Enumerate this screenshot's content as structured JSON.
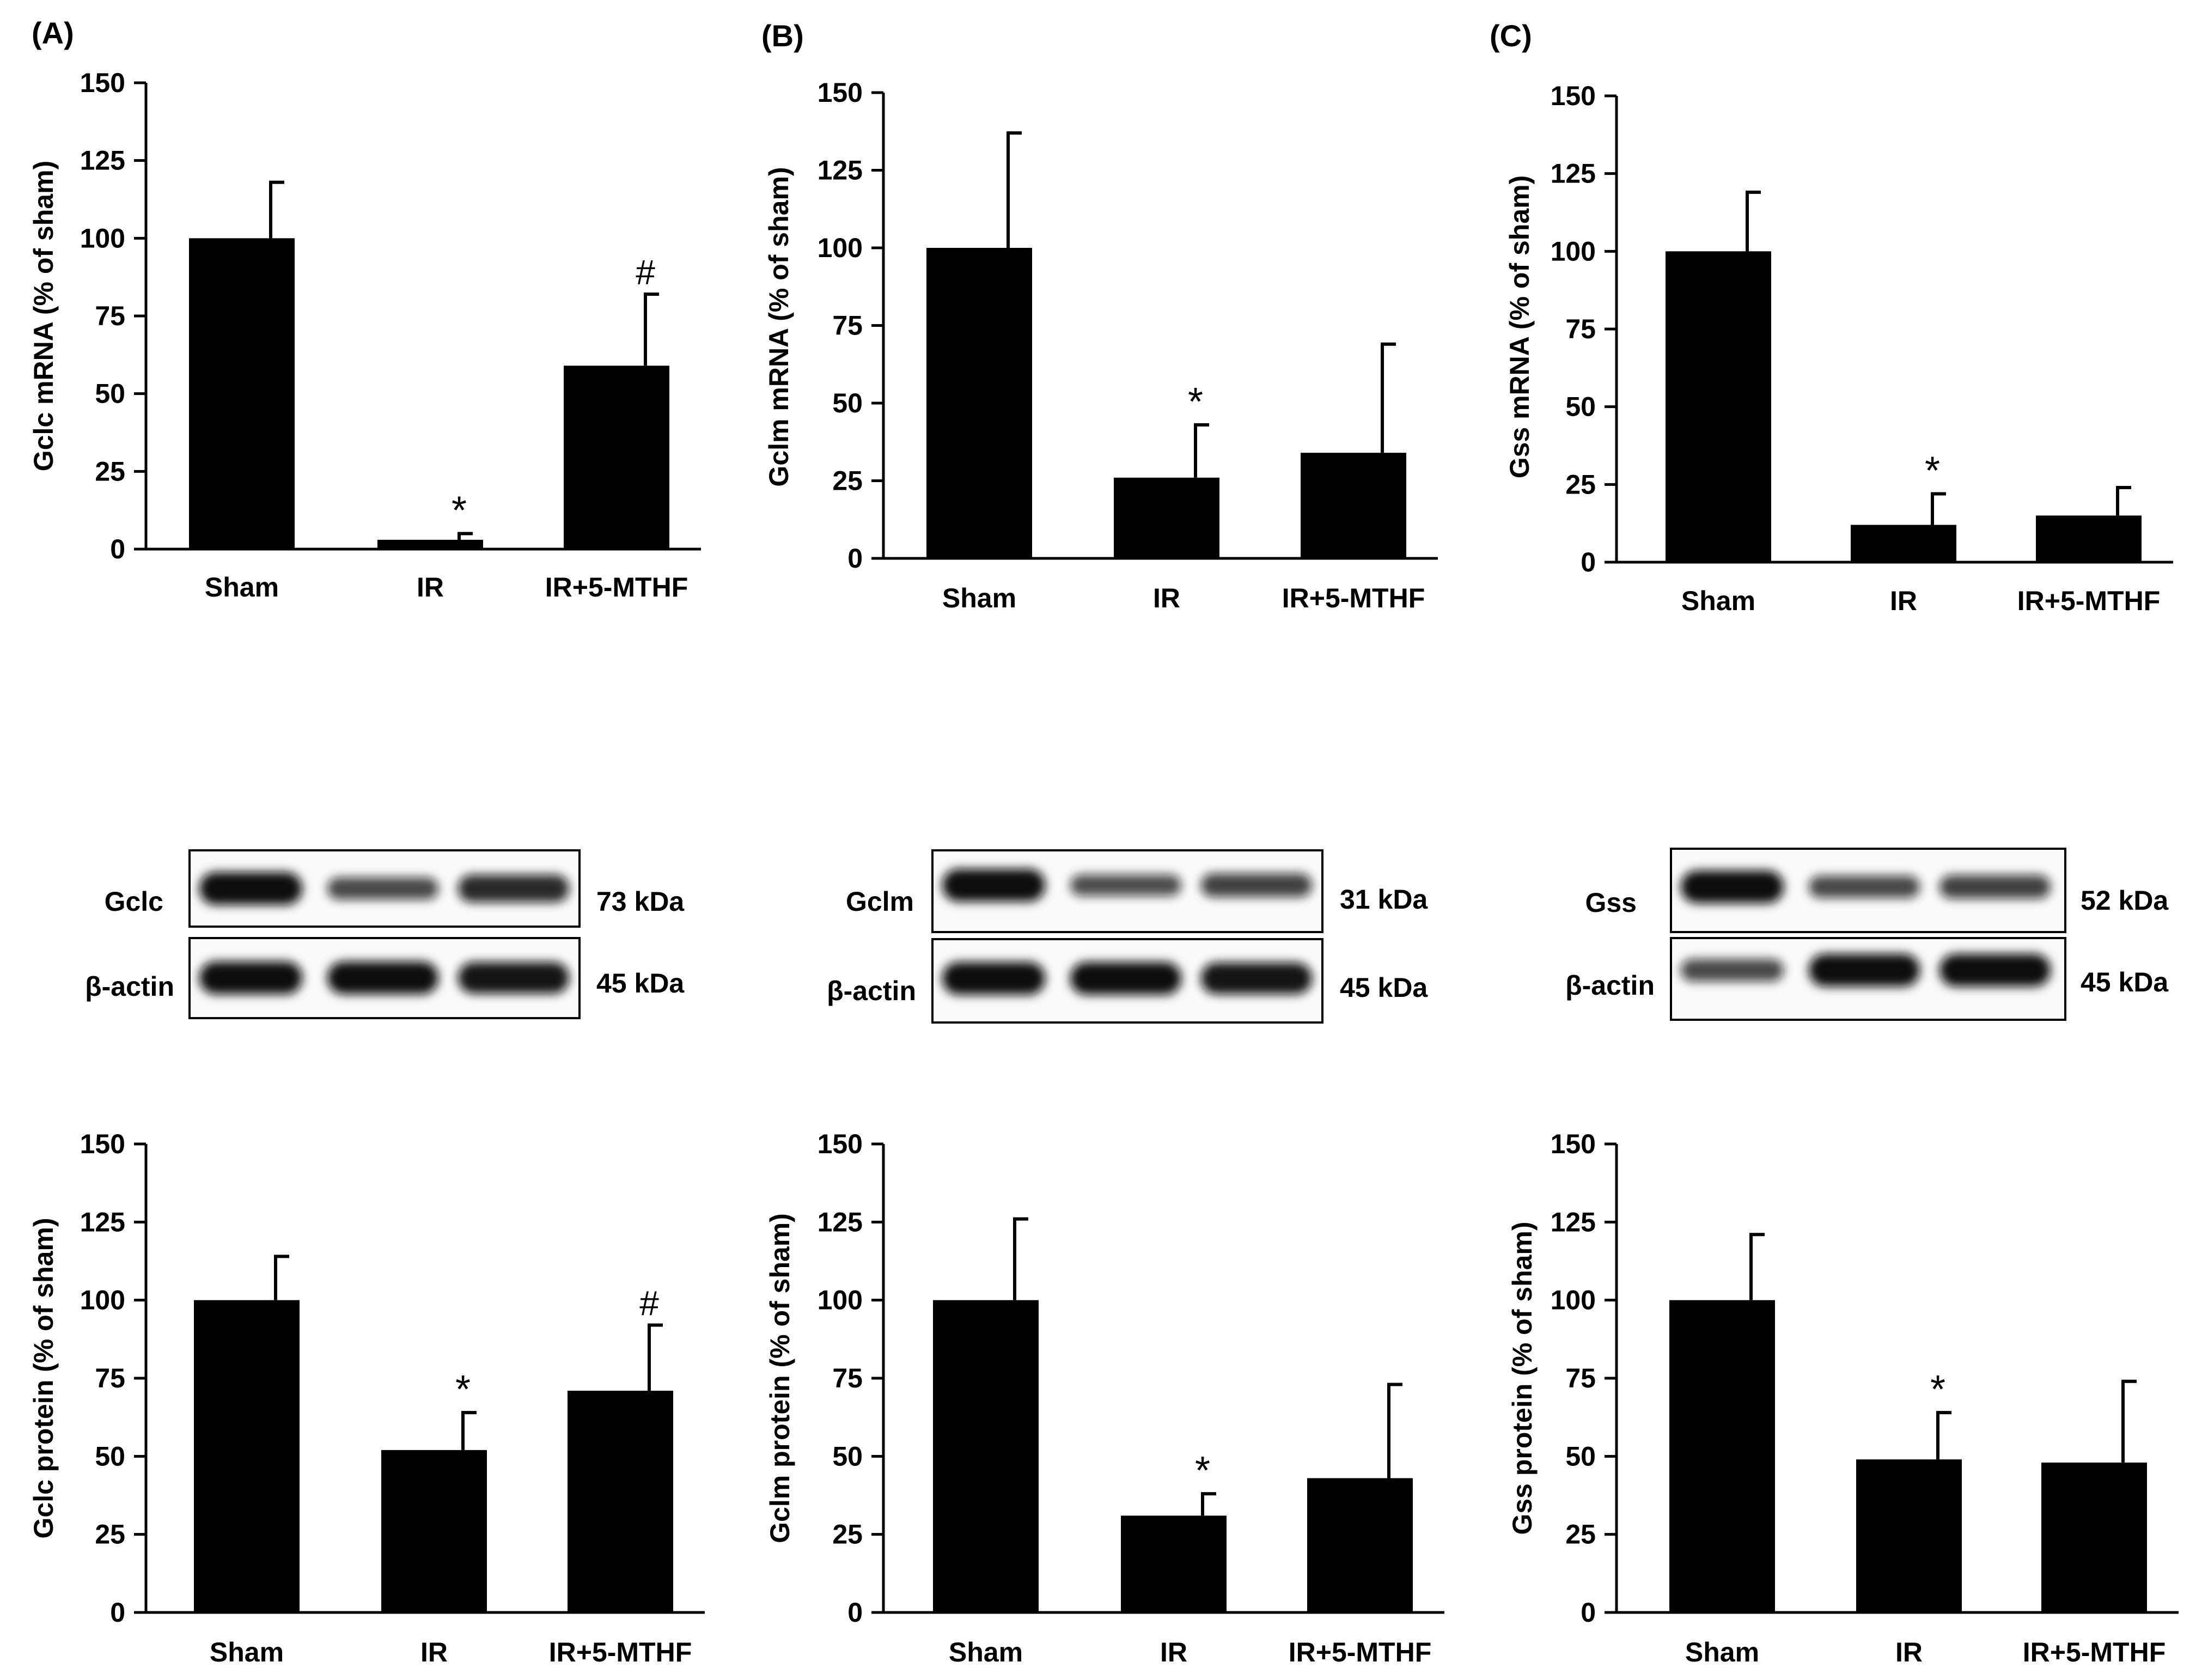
{
  "panels": [
    {
      "label": "(A)",
      "blot": {
        "target": "Gclc",
        "target_kda": "73 kDa",
        "control": "β-actin",
        "control_kda": "45 kDa",
        "target_bands": [
          1.0,
          0.55,
          0.78
        ],
        "control_bands": [
          1.0,
          1.0,
          0.95
        ]
      }
    },
    {
      "label": "(B)",
      "blot": {
        "target": "Gclm",
        "target_kda": "31 kDa",
        "control": "β-actin",
        "control_kda": "45 kDa",
        "target_bands": [
          1.0,
          0.5,
          0.6
        ],
        "control_bands": [
          1.0,
          1.0,
          0.95
        ]
      }
    },
    {
      "label": "(C)",
      "blot": {
        "target": "Gss",
        "target_kda": "52 kDa",
        "control": "β-actin",
        "control_kda": "45 kDa",
        "target_bands": [
          1.0,
          0.55,
          0.6
        ],
        "control_bands": [
          0.55,
          1.0,
          1.0
        ]
      }
    }
  ],
  "chart_data": [
    {
      "type": "bar",
      "panel": "A",
      "row": "mRNA",
      "categories": [
        "Sham",
        "IR",
        "IR+5-MTHF"
      ],
      "values": [
        100,
        3,
        59
      ],
      "errors": [
        18,
        2,
        23
      ],
      "annotations": [
        "",
        "*",
        "#"
      ],
      "ylabel": "Gclc mRNA (% of sham)",
      "ylim": [
        0,
        150
      ],
      "yticks": [
        0,
        25,
        50,
        75,
        100,
        125,
        150
      ]
    },
    {
      "type": "bar",
      "panel": "B",
      "row": "mRNA",
      "categories": [
        "Sham",
        "IR",
        "IR+5-MTHF"
      ],
      "values": [
        100,
        26,
        34
      ],
      "errors": [
        37,
        17,
        35
      ],
      "annotations": [
        "",
        "*",
        ""
      ],
      "ylabel": "Gclm mRNA (% of sham)",
      "ylim": [
        0,
        150
      ],
      "yticks": [
        0,
        25,
        50,
        75,
        100,
        125,
        150
      ]
    },
    {
      "type": "bar",
      "panel": "C",
      "row": "mRNA",
      "categories": [
        "Sham",
        "IR",
        "IR+5-MTHF"
      ],
      "values": [
        100,
        12,
        15
      ],
      "errors": [
        19,
        10,
        9
      ],
      "annotations": [
        "",
        "*",
        ""
      ],
      "ylabel": "Gss mRNA (% of sham)",
      "ylim": [
        0,
        150
      ],
      "yticks": [
        0,
        25,
        50,
        75,
        100,
        125,
        150
      ]
    },
    {
      "type": "bar",
      "panel": "A",
      "row": "protein",
      "categories": [
        "Sham",
        "IR",
        "IR+5-MTHF"
      ],
      "values": [
        100,
        52,
        71
      ],
      "errors": [
        14,
        12,
        21
      ],
      "annotations": [
        "",
        "*",
        "#"
      ],
      "ylabel": "Gclc protein  (% of sham)",
      "ylim": [
        0,
        150
      ],
      "yticks": [
        0,
        25,
        50,
        75,
        100,
        125,
        150
      ]
    },
    {
      "type": "bar",
      "panel": "B",
      "row": "protein",
      "categories": [
        "Sham",
        "IR",
        "IR+5-MTHF"
      ],
      "values": [
        100,
        31,
        43
      ],
      "errors": [
        26,
        7,
        30
      ],
      "annotations": [
        "",
        "*",
        ""
      ],
      "ylabel": "Gclm protein (% of sham)",
      "ylim": [
        0,
        150
      ],
      "yticks": [
        0,
        25,
        50,
        75,
        100,
        125,
        150
      ]
    },
    {
      "type": "bar",
      "panel": "C",
      "row": "protein",
      "categories": [
        "Sham",
        "IR",
        "IR+5-MTHF"
      ],
      "values": [
        100,
        49,
        48
      ],
      "errors": [
        21,
        15,
        26
      ],
      "annotations": [
        "",
        "*",
        ""
      ],
      "ylabel": "Gss protein (% of sham)",
      "ylim": [
        0,
        150
      ],
      "yticks": [
        0,
        25,
        50,
        75,
        100,
        125,
        150
      ]
    }
  ]
}
